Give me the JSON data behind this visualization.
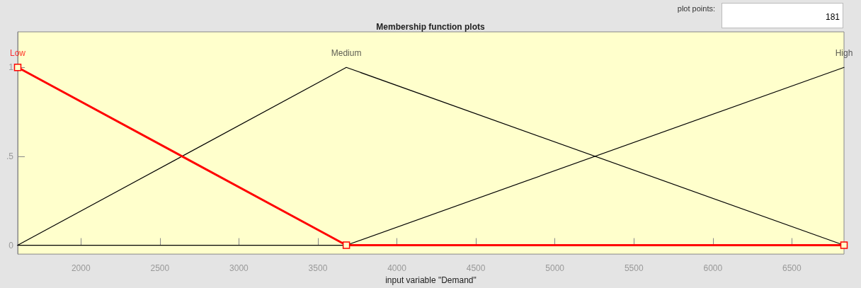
{
  "chart_data": {
    "type": "line",
    "title": "Membership function plots",
    "xlabel": "input variable \"Demand\"",
    "annotations": [
      "plot points:",
      "181"
    ],
    "series": [
      {
        "name": "Medium",
        "color": "#000000",
        "x": [
          1600,
          3680,
          6830
        ],
        "values": [
          0,
          1,
          0
        ]
      },
      {
        "name": "High",
        "color": "#000000",
        "x": [
          1600,
          3680,
          6830
        ],
        "values": [
          0,
          0,
          1
        ]
      },
      {
        "name": "Low",
        "color": "#ff0000",
        "x": [
          1600,
          3680,
          6830
        ],
        "values": [
          1,
          0,
          0
        ],
        "marker": "square"
      }
    ],
    "xlim": [
      1600,
      6830
    ],
    "xticks": [
      2000,
      2500,
      3000,
      3500,
      4000,
      4500,
      5000,
      5500,
      6000,
      6500
    ],
    "ylim": [
      -0.05,
      1.2
    ],
    "yticks": [
      0,
      {
        "value": 0.5,
        "label": ".5"
      },
      1
    ],
    "grid": false,
    "legend": false,
    "line_style": "solid",
    "marker": "none"
  }
}
